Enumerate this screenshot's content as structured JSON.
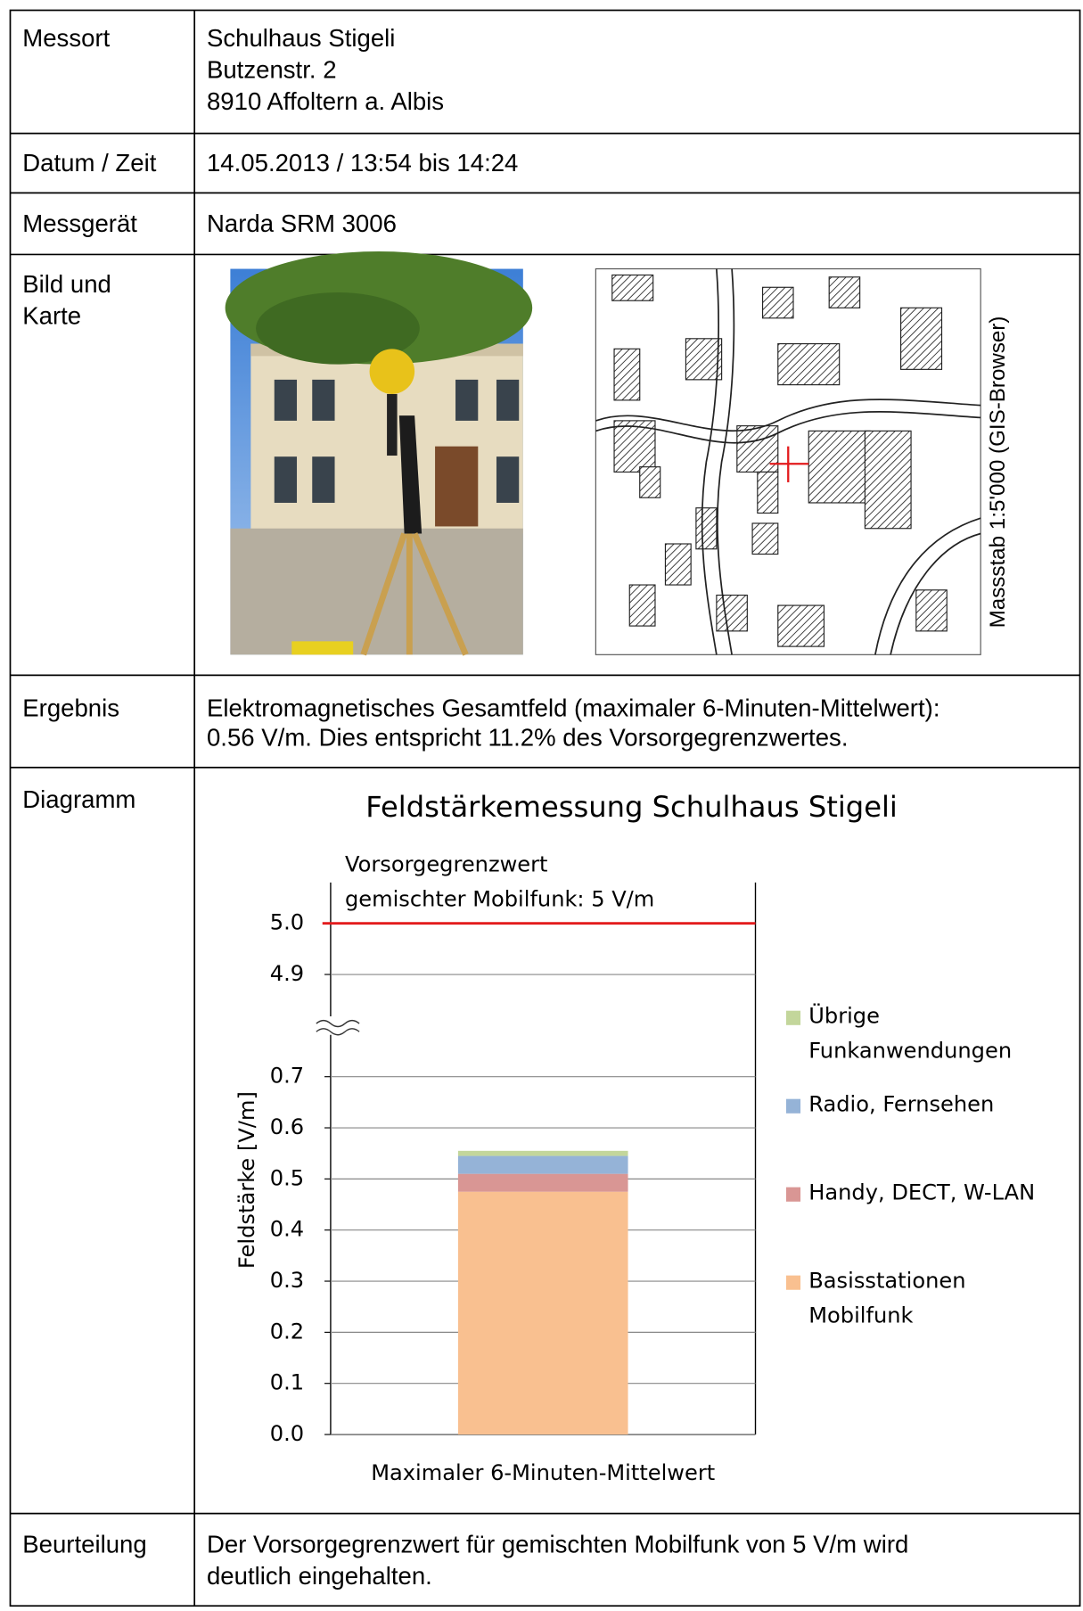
{
  "rows": [
    {
      "label": "Messort",
      "lines": [
        "Schulhaus Stigeli",
        "Butzenstr. 2",
        "8910 Affoltern a. Albis"
      ]
    },
    {
      "label": "Datum / Zeit",
      "lines": [
        "14.05.2013 / 13:54 bis 14:24"
      ]
    },
    {
      "label": "Messgerät",
      "lines": [
        "Narda SRM 3006"
      ]
    },
    {
      "label": "Bild und Karte",
      "map_caption": "Massstab 1:5'000 (GIS-Browser)"
    },
    {
      "label": "Ergebnis",
      "lines": [
        "Elektromagnetisches Gesamtfeld (maximaler 6-Minuten-Mittelwert):",
        "0.56 V/m. Dies entspricht 11.2% des Vorsorgegrenzwertes."
      ]
    },
    {
      "label": "Diagramm"
    },
    {
      "label": "Beurteilung",
      "lines": [
        "Der Vorsorgegrenzwert für gemischten Mobilfunk von 5 V/m wird",
        "deutlich eingehalten."
      ]
    }
  ],
  "chart_data": {
    "type": "stacked-bar",
    "title": "Feldstärkemessung Schulhaus Stigeli",
    "y_label": "Feldstärke [V/m]",
    "categories": [
      "Maximaler 6-Minuten-Mittelwert"
    ],
    "axis_break": true,
    "segments": [
      {
        "ylim": [
          0,
          0.8
        ],
        "yticks": [
          {
            "value": 0,
            "label": "0.0"
          },
          0.1,
          0.2,
          0.3,
          0.4,
          0.5,
          0.6,
          0.7
        ]
      },
      {
        "ylim": [
          4.8,
          5.08
        ],
        "yticks": [
          4.9,
          {
            "value": 5,
            "label": "5.0"
          }
        ]
      }
    ],
    "threshold": {
      "value": 5,
      "color": "#e31a1c",
      "label": [
        "Vorsorgegrenzwert",
        "gemischter Mobilfunk: 5 V/m"
      ]
    },
    "grid": true,
    "legend": "right",
    "series": [
      {
        "name": "Basisstationen Mobilfunk",
        "color": "#f9c090",
        "values": [
          0.475
        ]
      },
      {
        "name": "Handy, DECT, W-LAN",
        "color": "#d99694",
        "values": [
          0.035
        ]
      },
      {
        "name": "Radio, Fernsehen",
        "color": "#95b3d7",
        "values": [
          0.035
        ]
      },
      {
        "name": "Übrige Funkanwendungen",
        "color": "#c3d69b",
        "values": [
          0.01
        ]
      }
    ]
  }
}
